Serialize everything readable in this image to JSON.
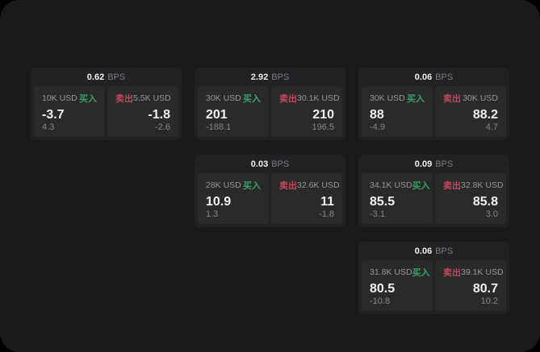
{
  "app": {
    "unit": "BPS",
    "buy_label": "买入",
    "sell_label": "卖出"
  },
  "colors": {
    "background": "#000000",
    "surface": "#1a1a1c",
    "card": "#222224",
    "panel": "#2a2a2b",
    "buy": "#35a06a",
    "sell": "#c2485e"
  },
  "cards": [
    {
      "row": 1,
      "col": 1,
      "bps": "0.62",
      "buy": {
        "amount": "10K USD",
        "value": "-3.7",
        "change": "4.3"
      },
      "sell": {
        "amount": "5.5K USD",
        "value": "-1.8",
        "change": "-2.6"
      }
    },
    {
      "row": 1,
      "col": 2,
      "bps": "2.92",
      "buy": {
        "amount": "30K USD",
        "value": "201",
        "change": "-188.1"
      },
      "sell": {
        "amount": "30.1K USD",
        "value": "210",
        "change": "196.5"
      }
    },
    {
      "row": 1,
      "col": 3,
      "bps": "0.06",
      "buy": {
        "amount": "30K USD",
        "value": "88",
        "change": "-4.9"
      },
      "sell": {
        "amount": "30K USD",
        "value": "88.2",
        "change": "4.7"
      }
    },
    {
      "row": 2,
      "col": 2,
      "bps": "0.03",
      "buy": {
        "amount": "28K USD",
        "value": "10.9",
        "change": "1.3"
      },
      "sell": {
        "amount": "32.6K USD",
        "value": "11",
        "change": "-1.8"
      }
    },
    {
      "row": 2,
      "col": 3,
      "bps": "0.09",
      "buy": {
        "amount": "34.1K USD",
        "value": "85.5",
        "change": "-3.1"
      },
      "sell": {
        "amount": "32.8K USD",
        "value": "85.8",
        "change": "3.0"
      }
    },
    {
      "row": 3,
      "col": 3,
      "bps": "0.06",
      "buy": {
        "amount": "31.8K USD",
        "value": "80.5",
        "change": "-10.8"
      },
      "sell": {
        "amount": "39.1K USD",
        "value": "80.7",
        "change": "10.2"
      }
    }
  ]
}
